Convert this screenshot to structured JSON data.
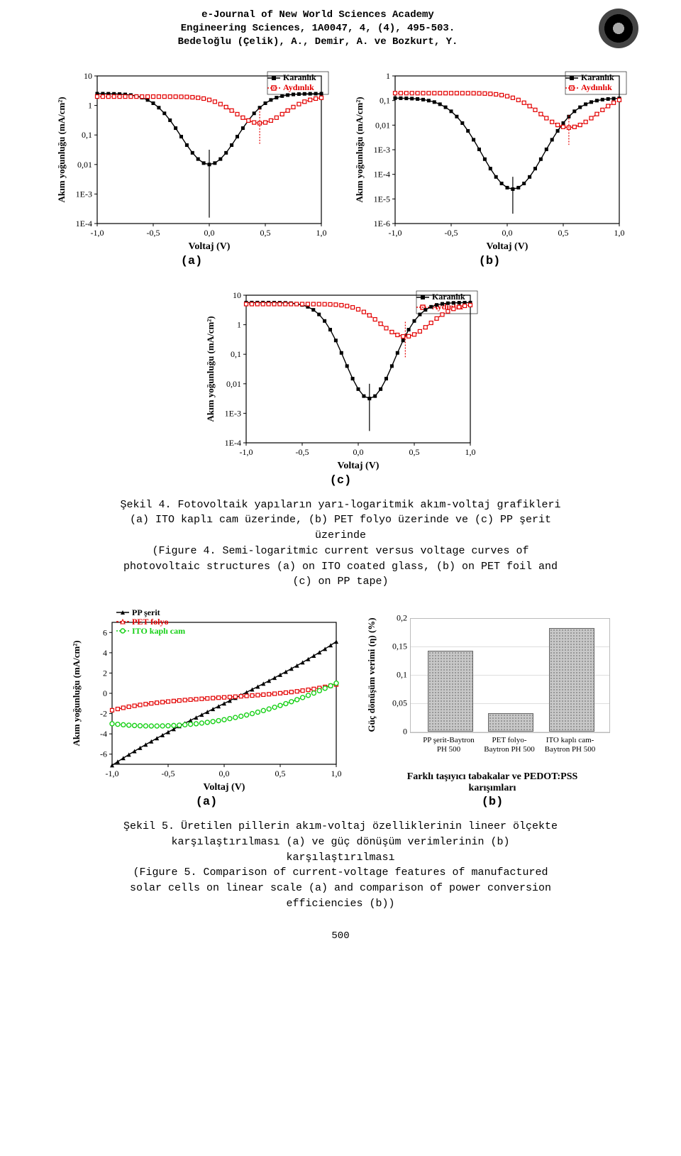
{
  "header": {
    "l1": "e-Journal of New World Sciences Academy",
    "l2": "Engineering Sciences, 1A0047, 4, (4), 495-503.",
    "l3": "Bedeloğlu (Çelik), A., Demir, A. ve Bozkurt, Y."
  },
  "legend": {
    "s1": "Karanlık",
    "s2": "Aydınlık"
  },
  "legend5a": {
    "s1": "PP şerit",
    "s2": "PET folyo",
    "s3": "ITO kaplı cam"
  },
  "labels": {
    "a": "(a)",
    "b": "(b)",
    "c": "(c)"
  },
  "axis": {
    "x": "Voltaj (V)",
    "y": "Akım yoğunluğu (mA/cm²)"
  },
  "colors": {
    "s1": "#000000",
    "s2": "#e30000",
    "pp": "#000000",
    "pet": "#e30000",
    "ito": "#16d016",
    "axis": "#000000",
    "grid": "#dddddd",
    "barfill": "#c8c8c8",
    "barborder": "#666666"
  },
  "fig4a": {
    "xlim": [
      -1.0,
      1.0
    ],
    "xticks": [
      "-1,0",
      "-0,5",
      "0,0",
      "0,5",
      "1,0"
    ],
    "yticks_log": [
      "10",
      "1",
      "0,1",
      "0,01",
      "1E-3",
      "1E-4"
    ],
    "ylog_exp": [
      1,
      0,
      -1,
      -2,
      -3,
      -4
    ]
  },
  "fig4b": {
    "xlim": [
      -1.0,
      1.0
    ],
    "xticks": [
      "-1,0",
      "-0,5",
      "0,0",
      "0,5",
      "1,0"
    ],
    "yticks_log": [
      "1",
      "0,1",
      "0,01",
      "1E-3",
      "1E-4",
      "1E-5",
      "1E-6"
    ],
    "ylog_exp": [
      0,
      -1,
      -2,
      -3,
      -4,
      -5,
      -6
    ]
  },
  "fig4c": {
    "xlim": [
      -1.0,
      1.0
    ],
    "xticks": [
      "-1,0",
      "-0,5",
      "0,0",
      "0,5",
      "1,0"
    ],
    "yticks_log": [
      "10",
      "1",
      "0,1",
      "0,01",
      "1E-3",
      "1E-4"
    ],
    "ylog_exp": [
      1,
      0,
      -1,
      -2,
      -3,
      -4
    ]
  },
  "fig5a": {
    "xlim": [
      -1.0,
      1.0
    ],
    "xticks": [
      "-1,0",
      "-0,5",
      "0,0",
      "0,5",
      "1,0"
    ],
    "yticks": [
      "6",
      "4",
      "2",
      "0",
      "-2",
      "-4",
      "-6"
    ],
    "ylim": [
      -7,
      7
    ]
  },
  "caption4": {
    "t1": "Şekil 4. Fotovoltaik yapıların yarı-logaritmik akım-voltaj grafikleri",
    "t2": "(a) ITO kaplı cam üzerinde, (b) PET folyo üzerinde ve (c) PP şerit",
    "t3": "üzerinde",
    "t4": "(Figure 4. Semi-logaritmic current versus voltage curves of",
    "t5": "photovoltaic structures (a) on ITO coated glass, (b) on PET foil and",
    "t6": "(c) on PP tape)"
  },
  "barchart": {
    "ylabel": "Güç dönüşüm verimi (η) (%)",
    "ymax": 0.2,
    "yticks": [
      "0",
      "0,05",
      "0,1",
      "0,15",
      "0,2"
    ],
    "bars": [
      {
        "label1": "PP şerit-Baytron",
        "label2": "PH 500",
        "value": 0.14
      },
      {
        "label1": "PET folyo-",
        "label2": "Baytron PH 500",
        "value": 0.03
      },
      {
        "label1": "ITO kaplı cam-",
        "label2": "Baytron PH 500",
        "value": 0.18
      }
    ],
    "xtitle1": "Farklı taşıyıcı tabakalar ve PEDOT:PSS",
    "xtitle2": "karışımları"
  },
  "caption5": {
    "t1": "Şekil 5. Üretilen pillerin akım-voltaj özelliklerinin lineer ölçekte",
    "t2": "karşılaştırılması (a) ve güç dönüşüm verimlerinin (b)",
    "t3": "karşılaştırılması",
    "t4": "(Figure 5. Comparison of current-voltage features of manufactured",
    "t5": "solar cells on linear scale (a) and comparison of power conversion",
    "t6": "efficiencies (b))"
  },
  "pageno": "500"
}
